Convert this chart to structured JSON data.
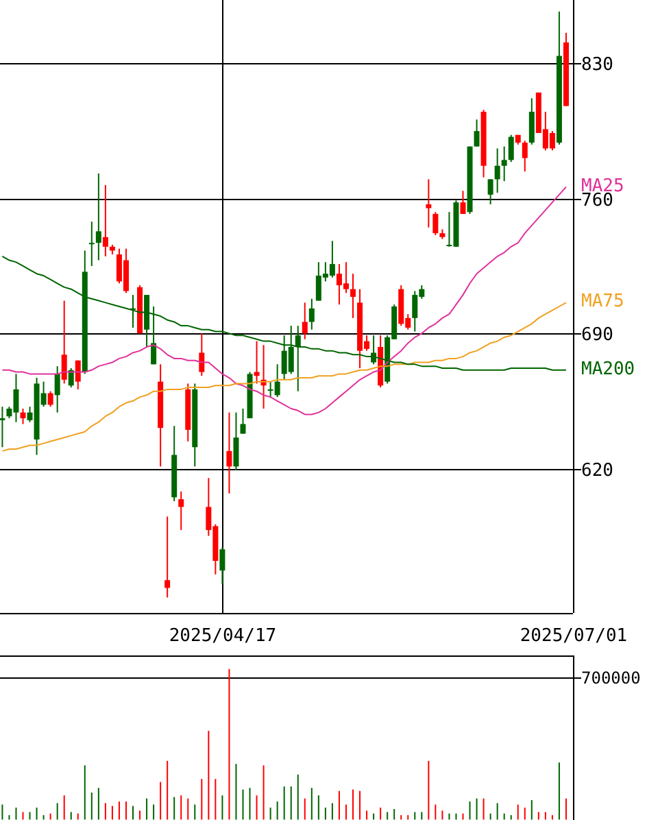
{
  "chart_data": [
    {
      "type": "candlestick",
      "grid": true,
      "ylim": [
        545,
        863
      ],
      "yticks": [
        620,
        690,
        760,
        830
      ],
      "categories": [
        null,
        null,
        null,
        null,
        null,
        null,
        null,
        null,
        null,
        null,
        null,
        null,
        null,
        null,
        null,
        null,
        null,
        null,
        null,
        null,
        null,
        null,
        null,
        null,
        null,
        null,
        null,
        null,
        null,
        null,
        null,
        null,
        "2025/04/17",
        null,
        null,
        null,
        null,
        null,
        null,
        null,
        null,
        null,
        null,
        null,
        null,
        null,
        null,
        null,
        null,
        null,
        null,
        null,
        null,
        null,
        null,
        null,
        null,
        null,
        null,
        null,
        null,
        null,
        null,
        null,
        null,
        null,
        null,
        null,
        null,
        null,
        null,
        null,
        null,
        null,
        null,
        null,
        null,
        null,
        null,
        null,
        null,
        null,
        null,
        "2025/07/01"
      ],
      "ohlc": [
        [
          645,
          652,
          631,
          646
        ],
        [
          647,
          652,
          646,
          651
        ],
        [
          649,
          669,
          644,
          661
        ],
        [
          649,
          651,
          643,
          646
        ],
        [
          645,
          652,
          644,
          649
        ],
        [
          635,
          667,
          627,
          664
        ],
        [
          653,
          665,
          652,
          659
        ],
        [
          659,
          660,
          652,
          653
        ],
        [
          658,
          673,
          649,
          669
        ],
        [
          679,
          707,
          664,
          666
        ],
        [
          663,
          672,
          662,
          671
        ],
        [
          676,
          676,
          661,
          665
        ],
        [
          670,
          733,
          669,
          722
        ],
        [
          737,
          748,
          725,
          737
        ],
        [
          737,
          773,
          728,
          743
        ],
        [
          740,
          767,
          730,
          735
        ],
        [
          735,
          736,
          731,
          733
        ],
        [
          731,
          734,
          716,
          717
        ],
        [
          728,
          734,
          711,
          712
        ],
        [
          703,
          710,
          693,
          703
        ],
        [
          714,
          715,
          690,
          690
        ],
        [
          692,
          710,
          683,
          710
        ],
        [
          674,
          704,
          674,
          685
        ],
        [
          665,
          674,
          621,
          641
        ],
        [
          562,
          595,
          553,
          558
        ],
        [
          605,
          642,
          603,
          627
        ],
        [
          604,
          608,
          588,
          600
        ],
        [
          661,
          664,
          634,
          640
        ],
        [
          631,
          664,
          621,
          661
        ],
        [
          680,
          690,
          668,
          670
        ],
        [
          600,
          615,
          585,
          588
        ],
        [
          590,
          591,
          565,
          572
        ],
        [
          567,
          579,
          560,
          578
        ],
        [
          629,
          649,
          607,
          621
        ],
        [
          621,
          649,
          619,
          636
        ],
        [
          638,
          651,
          638,
          643
        ],
        [
          646,
          670,
          646,
          669
        ],
        [
          670,
          686,
          664,
          668
        ],
        [
          666,
          684,
          651,
          663
        ],
        [
          661,
          665,
          657,
          661
        ],
        [
          658,
          674,
          657,
          665
        ],
        [
          669,
          689,
          666,
          681
        ],
        [
          670,
          694,
          669,
          683
        ],
        [
          683,
          694,
          660,
          689
        ],
        [
          696,
          706,
          687,
          690
        ],
        [
          696,
          708,
          692,
          703
        ],
        [
          707,
          727,
          707,
          720
        ],
        [
          719,
          727,
          717,
          721
        ],
        [
          720,
          738,
          719,
          726
        ],
        [
          721,
          726,
          705,
          715
        ],
        [
          716,
          727,
          711,
          713
        ],
        [
          713,
          721,
          698,
          709
        ],
        [
          706,
          713,
          672,
          681
        ],
        [
          686,
          689,
          681,
          682
        ],
        [
          675,
          689,
          674,
          680
        ],
        [
          683,
          689,
          662,
          663
        ],
        [
          665,
          689,
          664,
          688
        ],
        [
          687,
          705,
          687,
          704
        ],
        [
          713,
          715,
          694,
          695
        ],
        [
          698,
          700,
          692,
          693
        ],
        [
          698,
          712,
          691,
          710
        ],
        [
          709,
          715,
          708,
          713
        ],
        [
          757,
          770,
          745,
          755
        ],
        [
          752,
          753,
          741,
          742
        ],
        [
          742,
          744,
          739,
          740
        ],
        [
          736,
          753,
          735,
          736
        ],
        [
          735,
          759,
          735,
          758
        ],
        [
          758,
          764,
          752,
          752
        ],
        [
          753,
          787,
          752,
          787
        ],
        [
          787,
          801,
          787,
          795
        ],
        [
          805,
          806,
          771,
          777
        ],
        [
          762,
          770,
          757,
          770
        ],
        [
          770,
          786,
          763,
          777
        ],
        [
          777,
          787,
          769,
          780
        ],
        [
          780,
          793,
          779,
          792
        ],
        [
          793,
          793,
          788,
          789
        ],
        [
          789,
          790,
          774,
          781
        ],
        [
          789,
          812,
          788,
          805
        ],
        [
          815,
          815,
          794,
          794
        ],
        [
          796,
          805,
          785,
          786
        ],
        [
          794,
          795,
          785,
          786
        ],
        [
          789,
          857,
          788,
          834
        ],
        [
          841,
          846,
          808,
          808
        ],
        null
      ],
      "colors": [
        "#006600",
        "#006600",
        "#006600",
        "#ff0000",
        "#006600",
        "#006600",
        "#006600",
        "#ff0000",
        "#006600",
        "#ff0000",
        "#006600",
        "#ff0000",
        "#006600",
        "#006600",
        "#006600",
        "#ff0000",
        "#ff0000",
        "#ff0000",
        "#ff0000",
        "#006600",
        "#ff0000",
        "#006600",
        "#006600",
        "#ff0000",
        "#ff0000",
        "#006600",
        "#ff0000",
        "#ff0000",
        "#006600",
        "#ff0000",
        "#ff0000",
        "#ff0000",
        "#006600",
        "#ff0000",
        "#006600",
        "#006600",
        "#006600",
        "#ff0000",
        "#ff0000",
        "#006600",
        "#006600",
        "#006600",
        "#006600",
        "#006600",
        "#ff0000",
        "#006600",
        "#006600",
        "#006600",
        "#006600",
        "#ff0000",
        "#ff0000",
        "#ff0000",
        "#ff0000",
        "#ff0000",
        "#006600",
        "#ff0000",
        "#006600",
        "#006600",
        "#ff0000",
        "#ff0000",
        "#006600",
        "#006600",
        "#ff0000",
        "#ff0000",
        "#ff0000",
        "#006600",
        "#006600",
        "#ff0000",
        "#006600",
        "#006600",
        "#ff0000",
        "#006600",
        "#006600",
        "#006600",
        "#006600",
        "#ff0000",
        "#ff0000",
        "#006600",
        "#ff0000",
        "#ff0000",
        "#ff0000",
        "#006600",
        "#ff0000",
        null
      ],
      "series": [
        {
          "type": "line",
          "name": "MA25",
          "color": "#e0309a",
          "values": [
            671,
            671,
            670,
            670,
            669,
            669,
            669,
            669,
            669,
            670,
            670,
            670,
            670,
            671,
            673,
            674,
            675,
            677,
            678,
            680,
            681,
            683,
            684,
            682,
            679,
            677,
            677,
            676,
            676,
            675,
            675,
            672,
            669,
            667,
            664,
            663,
            661,
            660,
            658,
            657,
            655,
            653,
            651,
            650,
            648,
            648,
            649,
            651,
            654,
            657,
            660,
            663,
            666,
            668,
            670,
            671,
            675,
            678,
            681,
            685,
            688,
            690,
            693,
            695,
            698,
            700,
            705,
            710,
            716,
            721,
            724,
            727,
            730,
            732,
            735,
            737,
            742,
            746,
            750,
            754,
            758,
            762,
            766,
            null
          ]
        },
        {
          "type": "line",
          "name": "MA75",
          "color": "#f0a020",
          "values": [
            629,
            630,
            630,
            631,
            632,
            632,
            633,
            634,
            635,
            636,
            637,
            638,
            639,
            642,
            644,
            647,
            649,
            652,
            654,
            655,
            657,
            658,
            660,
            660,
            661,
            661,
            661,
            662,
            662,
            662,
            662,
            663,
            663,
            663,
            664,
            664,
            664,
            665,
            665,
            665,
            666,
            666,
            666,
            667,
            667,
            667,
            668,
            668,
            668,
            669,
            669,
            670,
            671,
            671,
            672,
            673,
            673,
            674,
            674,
            674,
            675,
            675,
            675,
            676,
            676,
            677,
            677,
            678,
            680,
            681,
            683,
            685,
            686,
            688,
            689,
            691,
            693,
            695,
            698,
            700,
            702,
            704,
            706,
            null
          ]
        },
        {
          "type": "line",
          "name": "MA200",
          "color": "#006400",
          "values": [
            730,
            728,
            727,
            725,
            723,
            721,
            720,
            718,
            716,
            714,
            713,
            711,
            709,
            708,
            707,
            706,
            705,
            704,
            703,
            702,
            701,
            701,
            700,
            699,
            697,
            696,
            694,
            694,
            693,
            692,
            692,
            691,
            691,
            690,
            689,
            689,
            688,
            687,
            686,
            686,
            685,
            684,
            684,
            683,
            683,
            682,
            682,
            681,
            681,
            680,
            680,
            679,
            679,
            678,
            678,
            677,
            676,
            675,
            675,
            674,
            674,
            673,
            673,
            673,
            672,
            672,
            672,
            671,
            671,
            671,
            671,
            671,
            671,
            671,
            672,
            672,
            672,
            672,
            672,
            672,
            671,
            671,
            671,
            null
          ]
        }
      ]
    },
    {
      "type": "bar",
      "grid": "y",
      "ylim": [
        0,
        808000
      ],
      "yticks": [
        700000
      ],
      "categories": [
        null,
        null,
        null,
        null,
        null,
        null,
        null,
        null,
        null,
        null,
        null,
        null,
        null,
        null,
        null,
        null,
        null,
        null,
        null,
        null,
        null,
        null,
        null,
        null,
        null,
        null,
        null,
        null,
        null,
        null,
        null,
        null,
        null,
        null,
        null,
        null,
        null,
        null,
        null,
        null,
        null,
        null,
        null,
        null,
        null,
        null,
        null,
        null,
        null,
        null,
        null,
        null,
        null,
        null,
        null,
        null,
        null,
        null,
        null,
        null,
        null,
        null,
        null,
        null,
        null,
        null,
        null,
        null,
        null,
        null,
        null,
        null,
        null,
        null,
        null,
        null,
        null,
        null,
        null,
        null,
        null,
        null,
        null,
        null
      ],
      "values": [
        74000,
        22000,
        59000,
        37000,
        37000,
        59000,
        22000,
        30000,
        81000,
        119000,
        37000,
        30000,
        267000,
        133000,
        156000,
        81000,
        67000,
        89000,
        89000,
        67000,
        44000,
        104000,
        74000,
        185000,
        289000,
        111000,
        119000,
        104000,
        74000,
        200000,
        437000,
        200000,
        119000,
        741000,
        274000,
        148000,
        156000,
        119000,
        267000,
        59000,
        89000,
        163000,
        163000,
        222000,
        104000,
        156000,
        119000,
        59000,
        81000,
        141000,
        74000,
        148000,
        141000,
        44000,
        30000,
        59000,
        37000,
        52000,
        22000,
        22000,
        37000,
        37000,
        289000,
        74000,
        44000,
        30000,
        30000,
        30000,
        89000,
        104000,
        104000,
        30000,
        81000,
        30000,
        22000,
        74000,
        59000,
        96000,
        37000,
        37000,
        22000,
        281000,
        104000,
        null
      ],
      "colors": [
        "#006600",
        "#006600",
        "#006600",
        "#ff0000",
        "#006600",
        "#006600",
        "#006600",
        "#ff0000",
        "#006600",
        "#ff0000",
        "#006600",
        "#ff0000",
        "#006600",
        "#006600",
        "#006600",
        "#ff0000",
        "#ff0000",
        "#ff0000",
        "#ff0000",
        "#006600",
        "#ff0000",
        "#006600",
        "#006600",
        "#ff0000",
        "#ff0000",
        "#006600",
        "#ff0000",
        "#ff0000",
        "#006600",
        "#ff0000",
        "#ff0000",
        "#ff0000",
        "#006600",
        "#ff0000",
        "#006600",
        "#006600",
        "#006600",
        "#ff0000",
        "#ff0000",
        "#006600",
        "#006600",
        "#006600",
        "#006600",
        "#006600",
        "#ff0000",
        "#006600",
        "#006600",
        "#006600",
        "#006600",
        "#ff0000",
        "#ff0000",
        "#ff0000",
        "#ff0000",
        "#ff0000",
        "#006600",
        "#ff0000",
        "#006600",
        "#006600",
        "#ff0000",
        "#ff0000",
        "#006600",
        "#006600",
        "#ff0000",
        "#ff0000",
        "#ff0000",
        "#006600",
        "#006600",
        "#ff0000",
        "#006600",
        "#006600",
        "#ff0000",
        "#006600",
        "#006600",
        "#006600",
        "#006600",
        "#ff0000",
        "#ff0000",
        "#006600",
        "#ff0000",
        "#ff0000",
        "#ff0000",
        "#006600",
        "#ff0000",
        null
      ]
    }
  ]
}
